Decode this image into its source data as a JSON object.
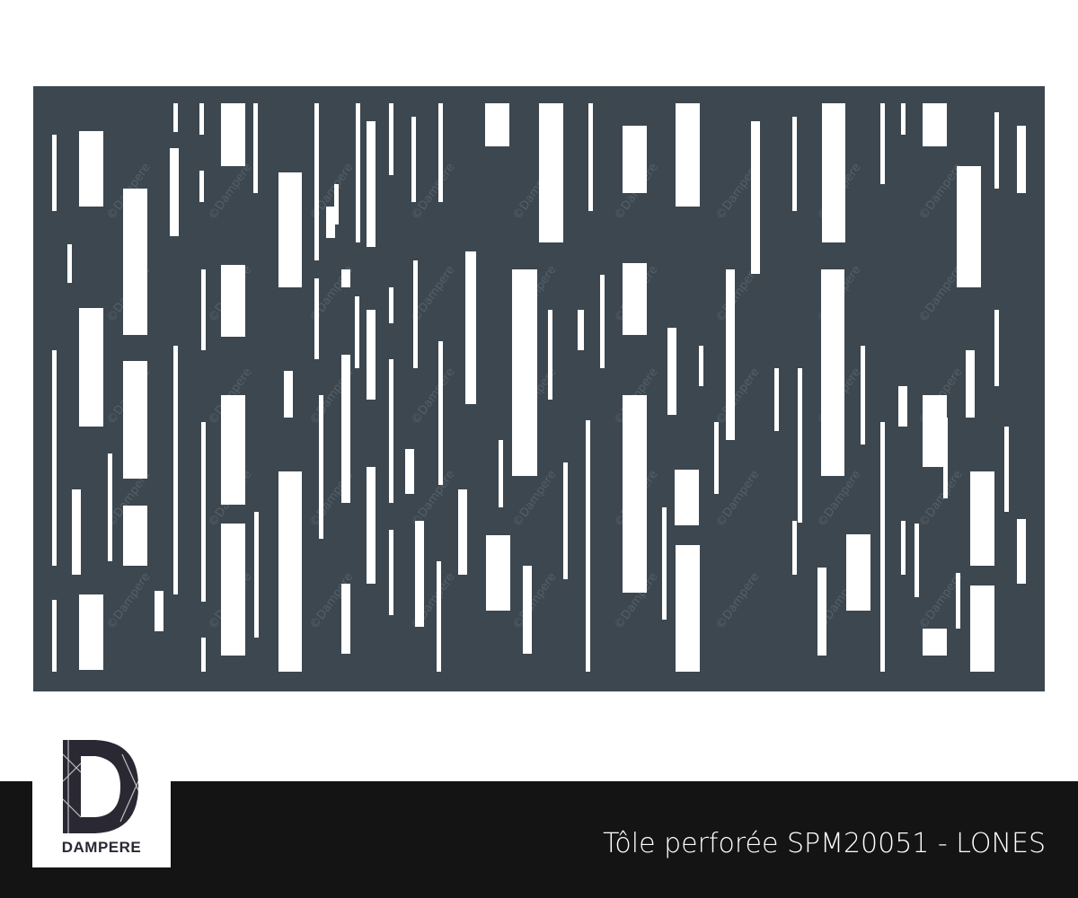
{
  "product": {
    "title": "Tôle perforée SPM20051 - LONES",
    "panel_color": "#3c4750",
    "watermark": "©Dampere"
  },
  "brand": {
    "logo_text": "DAMPERE"
  }
}
